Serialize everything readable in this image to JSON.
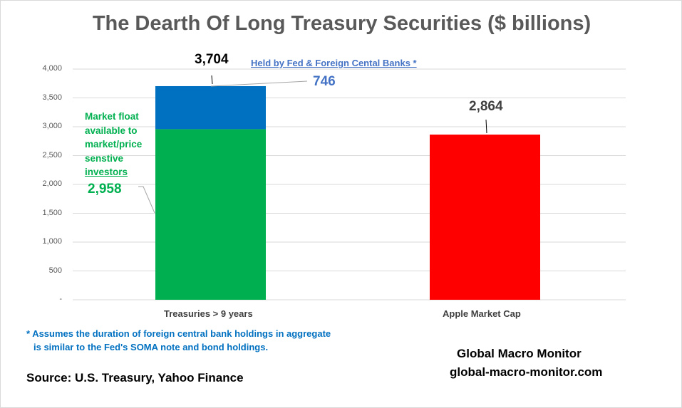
{
  "chart_data": {
    "type": "bar",
    "title": "The Dearth Of Long Treasury Securities ($ billions)",
    "categories": [
      "Treasuries > 9 years",
      "Apple Market Cap"
    ],
    "series": [
      {
        "name": "Market float available to market/price senstive investors",
        "values": [
          2958,
          0
        ],
        "color": "#00b050"
      },
      {
        "name": "Held by Fed & Foreign Cental Banks *",
        "values": [
          746,
          0
        ],
        "color": "#0070c0"
      },
      {
        "name": "Apple Market Cap",
        "values": [
          0,
          2864
        ],
        "color": "#ff0000"
      }
    ],
    "ylim": [
      0,
      4000
    ],
    "yticks": [
      0,
      500,
      1000,
      1500,
      2000,
      2500,
      3000,
      3500,
      4000
    ],
    "ytick_labels": [
      "-",
      "500",
      "1,000",
      "1,500",
      "2,000",
      "2,500",
      "3,000",
      "3,500",
      "4,000"
    ],
    "grid": true,
    "annotations": {
      "total": "3,704",
      "held": "746",
      "held_label": "Held by Fed & Foreign Cental Banks  *",
      "float_label": [
        "Market float",
        "available to",
        "market/price",
        "senstive",
        "investors"
      ],
      "float_value": "2,958",
      "apple_value": "2,864"
    }
  },
  "footnote": [
    "* Assumes the duration of foreign central bank holdings in aggregate",
    "is similar to the Fed's SOMA note and bond holdings."
  ],
  "source": "Source:  U.S. Treasury, Yahoo Finance",
  "brand": {
    "name": "Global Macro Monitor",
    "url": "global-macro-monitor.com"
  }
}
